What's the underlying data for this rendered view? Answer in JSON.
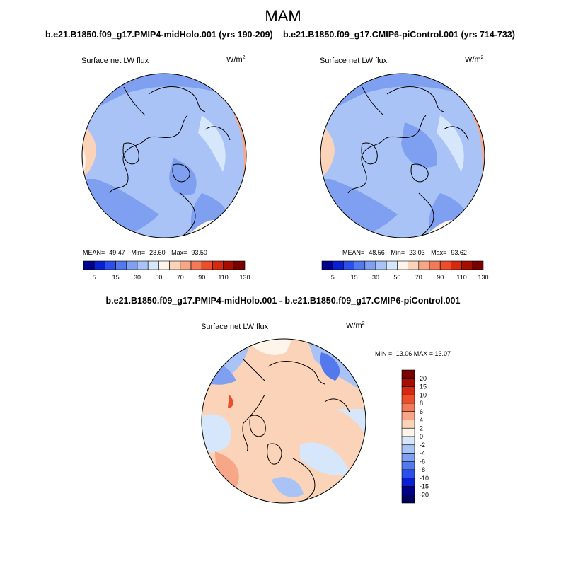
{
  "title": "MAM",
  "panels": [
    {
      "case_title": "b.e21.B1850.f09_g17.PMIP4-midHolo.001 (yrs 190-209)",
      "variable": "Surface net LW flux",
      "units_base": "W/m",
      "units_exp": "2",
      "stats": {
        "mean_label": "MEAN=",
        "mean": "49.47",
        "min_label": "Min=",
        "min": "23.60",
        "max_label": "Max=",
        "max": "93.50"
      }
    },
    {
      "case_title": "b.e21.B1850.f09_g17.CMIP6-piControl.001 (yrs 714-733)",
      "variable": "Surface net LW flux",
      "units_base": "W/m",
      "units_exp": "2",
      "stats": {
        "mean_label": "MEAN=",
        "mean": "48.56",
        "min_label": "Min=",
        "min": "23.03",
        "max_label": "Max=",
        "max": "93.62"
      }
    }
  ],
  "diff_panel": {
    "title": "b.e21.B1850.f09_g17.PMIP4-midHolo.001 - b.e21.B1850.f09_g17.CMIP6-piControl.001",
    "variable": "Surface net LW flux",
    "units_base": "W/m",
    "units_exp": "2",
    "minmax": "MIN = -13.06 MAX =  13.07"
  },
  "colorbar_top": {
    "labels": [
      "5",
      "15",
      "30",
      "50",
      "70",
      "90",
      "110",
      "130"
    ],
    "colors": [
      "#00008c",
      "#0a1fd2",
      "#2b4fe8",
      "#5479ec",
      "#7fa0f0",
      "#a9c3f6",
      "#d6e6fb",
      "#fef5ea",
      "#fbd3b8",
      "#f7a787",
      "#f37a58",
      "#ec4e2c",
      "#d52a10",
      "#a60f00",
      "#780000"
    ]
  },
  "colorbar_diff": {
    "labels": [
      "20",
      "15",
      "10",
      "8",
      "6",
      "4",
      "2",
      "0",
      "-2",
      "-4",
      "-6",
      "-8",
      "-10",
      "-15",
      "-20"
    ],
    "colors": [
      "#780000",
      "#a60f00",
      "#d52a10",
      "#ec4e2c",
      "#f37a58",
      "#f7a787",
      "#fbd3b8",
      "#fef5ea",
      "#d6e6fb",
      "#a9c3f6",
      "#7fa0f0",
      "#5479ec",
      "#2b4fe8",
      "#0a1fd2",
      "#00008c",
      "#00005a"
    ]
  }
}
